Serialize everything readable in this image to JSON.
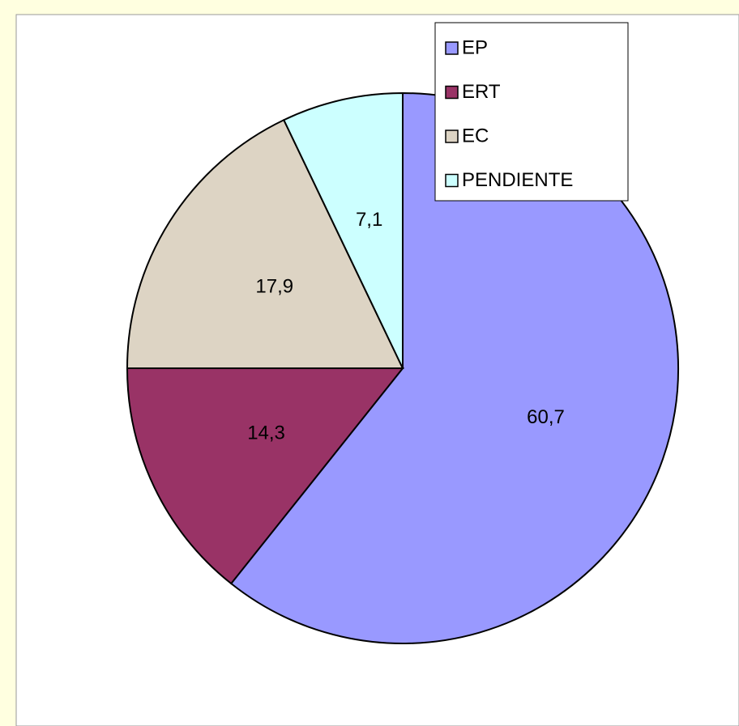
{
  "chart_data": {
    "type": "pie",
    "categories": [
      "EP",
      "ERT",
      "EC",
      "PENDIENTE"
    ],
    "values": [
      60.7,
      14.3,
      17.9,
      7.1
    ],
    "value_labels": [
      "60,7",
      "14,3",
      "17,9",
      "7,1"
    ],
    "colors": [
      "#9999ff",
      "#993366",
      "#ddd4c4",
      "#ccffff"
    ],
    "legend": "upper right"
  }
}
